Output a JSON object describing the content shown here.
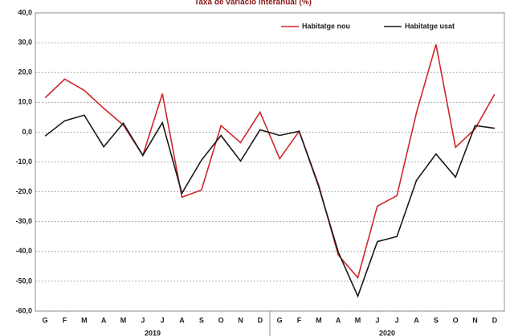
{
  "chart_data": {
    "type": "line",
    "title": "Taxa de variació interanual (%)",
    "categories": [
      "G",
      "F",
      "M",
      "A",
      "M",
      "J",
      "J",
      "A",
      "S",
      "O",
      "N",
      "D",
      "G",
      "F",
      "M",
      "A",
      "M",
      "J",
      "J",
      "A",
      "S",
      "O",
      "N",
      "D"
    ],
    "years": [
      "2019",
      "2020"
    ],
    "series": [
      {
        "name": "Habitatge nou",
        "color": "#d0262b",
        "values": [
          11.5,
          17.8,
          14,
          8,
          2.4,
          -7.8,
          12.9,
          -21.8,
          -19.4,
          2.2,
          -3.5,
          6.7,
          -8.9,
          0.3,
          -17.8,
          -41.2,
          -48.8,
          -24.8,
          -21.3,
          6.5,
          29.4,
          -5.1,
          1.1,
          12.7
        ]
      },
      {
        "name": "Habitatge usat",
        "color": "#1a1a1a",
        "values": [
          -1.3,
          3.8,
          5.7,
          -4.9,
          3.0,
          -7.8,
          3.2,
          -20.5,
          -9.4,
          -1.1,
          -9.7,
          0.8,
          -1.1,
          0.3,
          -18.3,
          -40.2,
          -55,
          -36.7,
          -35,
          -16.2,
          -7.3,
          -15.1,
          2.2,
          1.3
        ]
      }
    ],
    "ylim": [
      -60,
      40
    ],
    "yticks": [
      {
        "value": -60,
        "label": "-60,0"
      },
      {
        "value": -50,
        "label": "-50,0"
      },
      {
        "value": -40,
        "label": "-40,0"
      },
      {
        "value": -30,
        "label": "-30,0"
      },
      {
        "value": -20,
        "label": "-20,0"
      },
      {
        "value": -10,
        "label": "-10,0"
      },
      {
        "value": 0,
        "label": "0,0"
      },
      {
        "value": 10,
        "label": "10,0"
      },
      {
        "value": 20,
        "label": "20,0"
      },
      {
        "value": 30,
        "label": "30,0"
      },
      {
        "value": 40,
        "label": "40,0"
      }
    ],
    "grid": true,
    "legend": "top-right"
  }
}
